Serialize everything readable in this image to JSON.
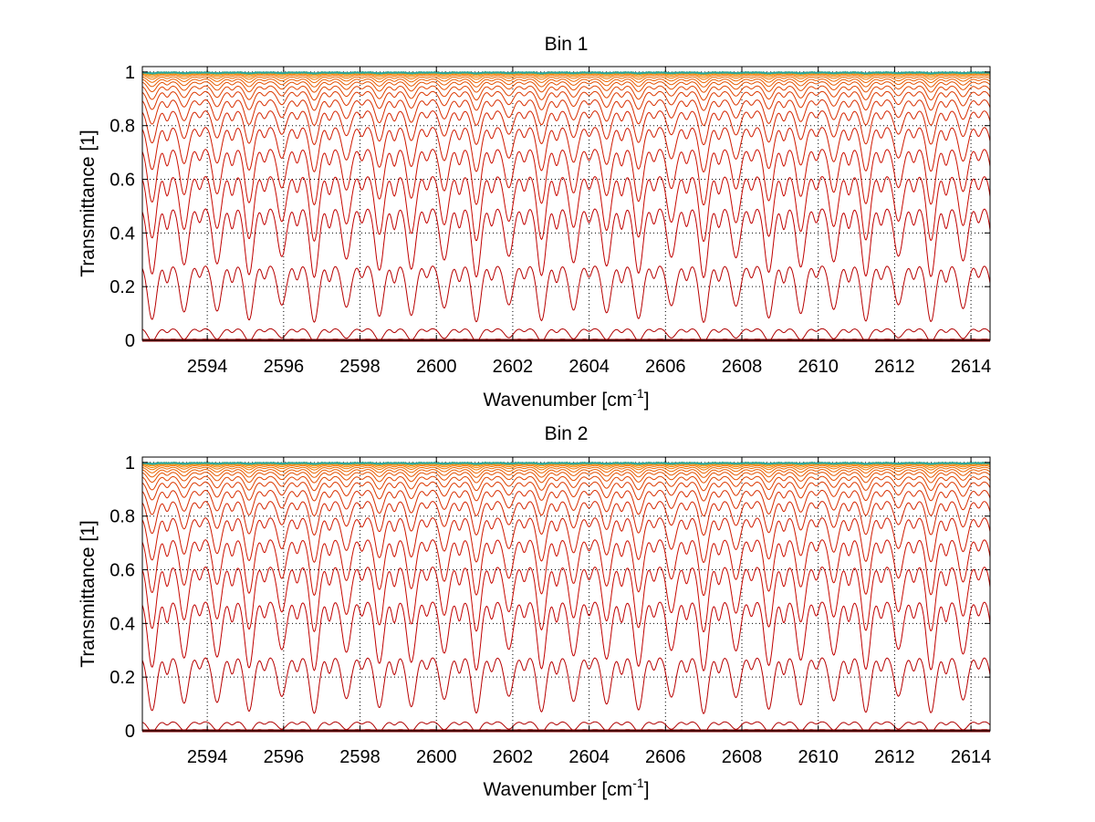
{
  "chart_data": [
    {
      "type": "line",
      "title": "Bin 1",
      "xlabel": "Wavenumber [cm",
      "xlabel_sup": "-1",
      "xlabel_suffix": "]",
      "ylabel": "Transmittance [1]",
      "xlim": [
        2592.3,
        2614.5
      ],
      "ylim": [
        0,
        1.02
      ],
      "x_ticks": [
        2594,
        2596,
        2598,
        2600,
        2602,
        2604,
        2606,
        2608,
        2610,
        2612,
        2614
      ],
      "x_tick_labels": [
        "2594",
        "2596",
        "2598",
        "2600",
        "2602",
        "2604",
        "2606",
        "2608",
        "2610",
        "2612",
        "2614"
      ],
      "y_ticks": [
        0,
        0.2,
        0.4,
        0.6,
        0.8,
        1
      ],
      "y_tick_labels": [
        "0",
        "0.2",
        "0.4",
        "0.6",
        "0.8",
        "1"
      ],
      "grid": true,
      "legend": "none",
      "line_spacing_cm1": 0.85,
      "series_baselines": [
        0.0,
        0.005,
        0.045,
        0.285,
        0.5,
        0.62,
        0.72,
        0.8,
        0.86,
        0.9,
        0.93,
        0.95,
        0.965,
        0.975,
        0.983,
        0.989,
        0.993,
        0.996,
        0.998,
        0.999,
        1.0
      ],
      "series_colors": [
        "#8b0000",
        "#9a0000",
        "#b00000",
        "#b80000",
        "#c00000",
        "#c80800",
        "#cc1000",
        "#d01a00",
        "#d42400",
        "#d82e00",
        "#dc3800",
        "#e04400",
        "#e45000",
        "#e85c00",
        "#ec6800",
        "#f07400",
        "#f48000",
        "#f68c00",
        "#f89800",
        "#faa400",
        "#2aa7a0"
      ]
    },
    {
      "type": "line",
      "title": "Bin 2",
      "xlabel": "Wavenumber [cm",
      "xlabel_sup": "-1",
      "xlabel_suffix": "]",
      "ylabel": "Transmittance [1]",
      "xlim": [
        2592.3,
        2614.5
      ],
      "ylim": [
        0,
        1.02
      ],
      "x_ticks": [
        2594,
        2596,
        2598,
        2600,
        2602,
        2604,
        2606,
        2608,
        2610,
        2612,
        2614
      ],
      "x_tick_labels": [
        "2594",
        "2596",
        "2598",
        "2600",
        "2602",
        "2604",
        "2606",
        "2608",
        "2610",
        "2612",
        "2614"
      ],
      "y_ticks": [
        0,
        0.2,
        0.4,
        0.6,
        0.8,
        1
      ],
      "y_tick_labels": [
        "0",
        "0.2",
        "0.4",
        "0.6",
        "0.8",
        "1"
      ],
      "grid": true,
      "legend": "none",
      "line_spacing_cm1": 0.85,
      "series_baselines": [
        0.0,
        0.005,
        0.035,
        0.28,
        0.49,
        0.62,
        0.72,
        0.8,
        0.86,
        0.9,
        0.93,
        0.95,
        0.965,
        0.975,
        0.983,
        0.989,
        0.993,
        0.996,
        0.998,
        0.999,
        1.0
      ],
      "series_colors": [
        "#8b0000",
        "#9a0000",
        "#b00000",
        "#b80000",
        "#c00000",
        "#c80800",
        "#cc1000",
        "#d01a00",
        "#d42400",
        "#d82e00",
        "#dc3800",
        "#e04400",
        "#e45000",
        "#e85c00",
        "#ec6800",
        "#f07400",
        "#f48000",
        "#f68c00",
        "#f89800",
        "#faa400",
        "#2aa7a0"
      ]
    }
  ]
}
